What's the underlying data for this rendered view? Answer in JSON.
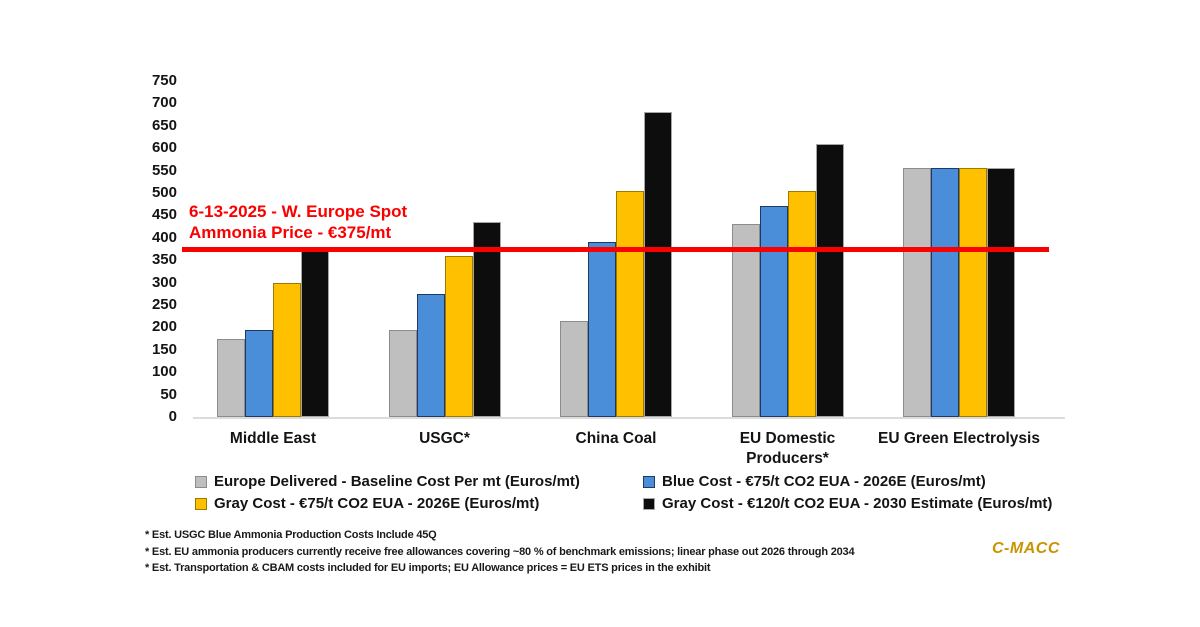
{
  "chart_data": {
    "type": "bar",
    "title": "",
    "xlabel": "",
    "ylabel": "",
    "ylim": [
      0,
      750
    ],
    "yticks": [
      0,
      50,
      100,
      150,
      200,
      250,
      300,
      350,
      400,
      450,
      500,
      550,
      600,
      650,
      700,
      750
    ],
    "grid": false,
    "legend_position": "bottom",
    "categories": [
      "Middle East",
      "USGC*",
      "China Coal",
      "EU Domestic\nProducers*",
      "EU Green Electrolysis"
    ],
    "series": [
      {
        "name": "Europe Delivered - Baseline Cost Per mt (Euros/mt)",
        "color": "#bfbfbf",
        "border_color": "#8c8c8c",
        "values": [
          175,
          195,
          215,
          430,
          555
        ]
      },
      {
        "name": "Blue Cost - €75/t CO2 EUA - 2026E (Euros/mt)",
        "color": "#4a8ed9",
        "border_color": "#1f3864",
        "values": [
          195,
          275,
          390,
          470,
          555
        ]
      },
      {
        "name": "Gray Cost - €75/t CO2 EUA - 2026E (Euros/mt)",
        "color": "#ffc000",
        "border_color": "#9c7a00",
        "values": [
          300,
          360,
          505,
          505,
          555
        ]
      },
      {
        "name": "Gray Cost - €120/t CO2 EUA - 2030 Estimate (Euros/mt)",
        "color": "#0d0d0d",
        "border_color": "#a6a6a6",
        "values": [
          370,
          435,
          680,
          610,
          555
        ]
      }
    ],
    "threshold_line": {
      "value": 375,
      "color": "#fb0000",
      "label_line1": "6-13-2025 - W. Europe Spot",
      "label_line2": "Ammonia Price - €375/mt"
    }
  },
  "footnotes": [
    "* Est. USGC Blue Ammonia Production Costs Include 45Q",
    "* Est. EU ammonia producers currently receive free allowances covering ~80 % of benchmark emissions; linear phase out 2026 through 2034",
    "* Est. Transportation & CBAM costs included for EU imports; EU Allowance prices = EU ETS prices in the exhibit"
  ],
  "brand": {
    "name": "C-MACC",
    "color": "#c99400"
  }
}
